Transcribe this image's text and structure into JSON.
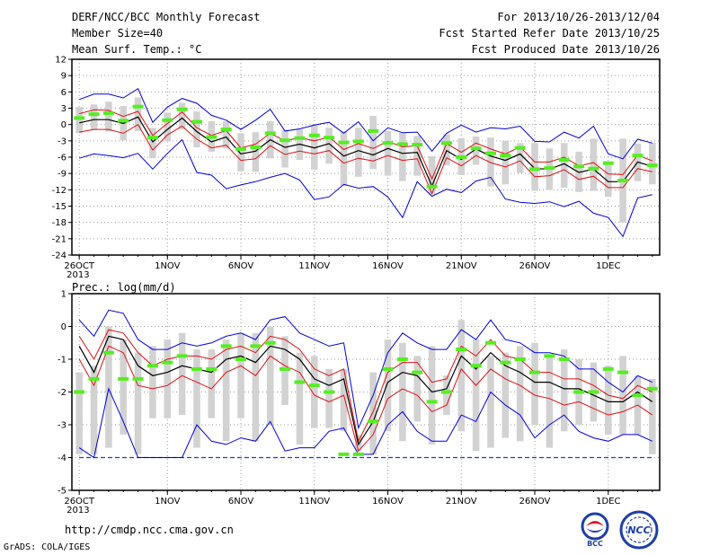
{
  "header": {
    "title": "DERF/NCC/BCC Monthly Forecast",
    "member_size": "Member Size=40",
    "variable": "Mean Surf. Temp.: °C",
    "forecast_period": "For 2013/10/26-2013/12/04",
    "started_date": "Fcst Started Refer Date 2013/10/25",
    "produced_date": "Fcst Produced Date 2013/10/26"
  },
  "footer": {
    "url": "http://cmdp.ncc.cma.gov.cn",
    "grads": "GrADS: COLA/IGES",
    "logo_bcc": "BCC",
    "logo_ncc": "NCC"
  },
  "colors": {
    "frame": "#000000",
    "grid": "#9a9a9a",
    "box": "#d2d2d2",
    "median": "#55ee22",
    "mean": "#000000",
    "spread": "#e01010",
    "extreme": "#0000dd",
    "floor": "#1c3fc8",
    "logo_blue": "#1f3fa7",
    "logo_red": "#d8202a"
  },
  "chart_data": [
    {
      "type": "line",
      "title": "Mean Surf. Temp.: °C",
      "xlabel": "",
      "ylabel": "",
      "x_tick_labels": [
        "26OCT",
        "1NOV",
        "6NOV",
        "11NOV",
        "16NOV",
        "21NOV",
        "26NOV",
        "1DEC"
      ],
      "x_tick_sublabel": "2013",
      "x_tick_days": [
        1,
        7,
        12,
        17,
        22,
        27,
        32,
        37
      ],
      "xlim": [
        1,
        40
      ],
      "ylim": [
        -24,
        12
      ],
      "y_ticks": [
        12,
        9,
        6,
        3,
        0,
        -3,
        -6,
        -9,
        -12,
        -15,
        -18,
        -21,
        -24
      ],
      "grid": true,
      "series": [
        {
          "role": "max",
          "values": [
            4.6,
            5.6,
            5.6,
            4.9,
            6.6,
            0.4,
            3.2,
            4.8,
            3.9,
            1.7,
            0.8,
            -0.9,
            0.8,
            2.8,
            -1.2,
            -0.8,
            -0.1,
            0.4,
            -1.6,
            0.5,
            -3.0,
            -0.6,
            -1.5,
            -1.4,
            -4.9,
            -1.6,
            -0.1,
            -1.4,
            -0.6,
            -0.8,
            -0.3,
            -3.1,
            -3.2,
            -1.4,
            -2.5,
            -0.3,
            -5.4,
            -6.3,
            -2.7,
            -3.4
          ]
        },
        {
          "role": "ens_upper",
          "values": [
            2.0,
            2.7,
            2.6,
            1.5,
            2.4,
            -2.0,
            0.2,
            2.3,
            -0.6,
            -2.0,
            -1.1,
            -4.3,
            -3.6,
            -1.6,
            -3.0,
            -2.4,
            -3.0,
            -2.3,
            -4.6,
            -3.5,
            -4.4,
            -3.1,
            -4.1,
            -3.9,
            -10.0,
            -3.5,
            -5.1,
            -3.4,
            -4.5,
            -5.4,
            -4.1,
            -6.9,
            -6.9,
            -6.0,
            -7.6,
            -7.0,
            -9.1,
            -9.2,
            -5.6,
            -6.7
          ]
        },
        {
          "role": "mean",
          "values": [
            0.3,
            0.9,
            0.9,
            0.2,
            1.4,
            -3.2,
            -0.9,
            1.2,
            -1.3,
            -3.2,
            -2.3,
            -5.4,
            -4.9,
            -2.8,
            -4.2,
            -3.6,
            -4.3,
            -3.5,
            -5.8,
            -4.8,
            -5.6,
            -4.4,
            -5.3,
            -5.1,
            -11.3,
            -4.8,
            -6.4,
            -4.5,
            -5.8,
            -6.6,
            -5.4,
            -8.1,
            -8.2,
            -7.2,
            -8.8,
            -8.2,
            -10.5,
            -10.5,
            -6.9,
            -7.7
          ]
        },
        {
          "role": "ens_lower",
          "values": [
            -1.4,
            -0.9,
            -0.9,
            -1.6,
            0.0,
            -4.7,
            -1.9,
            -0.3,
            -2.7,
            -4.3,
            -3.8,
            -6.6,
            -6.3,
            -3.9,
            -5.5,
            -4.9,
            -5.4,
            -4.8,
            -7.1,
            -6.2,
            -6.7,
            -5.7,
            -6.6,
            -6.3,
            -12.7,
            -6.1,
            -7.6,
            -5.7,
            -7.0,
            -7.8,
            -6.7,
            -9.6,
            -9.4,
            -8.3,
            -10.1,
            -9.5,
            -11.6,
            -11.6,
            -8.1,
            -8.7
          ]
        },
        {
          "role": "min",
          "values": [
            -6.2,
            -5.4,
            -5.7,
            -6.1,
            -5.3,
            -8.2,
            -5.3,
            -2.8,
            -8.8,
            -9.3,
            -11.8,
            -11.1,
            -10.5,
            -9.7,
            -9.0,
            -10.2,
            -13.8,
            -13.3,
            -11.0,
            -11.7,
            -11.4,
            -13.3,
            -17.1,
            -10.5,
            -13.2,
            -11.9,
            -12.5,
            -10.4,
            -9.7,
            -13.7,
            -14.3,
            -14.5,
            -14.2,
            -15.1,
            -14.1,
            -16.3,
            -17.1,
            -20.6,
            -13.5,
            -12.9
          ]
        },
        {
          "role": "median",
          "values": [
            1.2,
            1.9,
            2.1,
            0.7,
            3.3,
            -2.4,
            0.8,
            2.8,
            0.5,
            -2.3,
            -0.9,
            -4.5,
            -4.2,
            -1.6,
            -2.9,
            -2.5,
            -2.0,
            -2.4,
            -3.3,
            -3.1,
            -1.2,
            -3.4,
            -3.6,
            -3.7,
            -11.4,
            -3.4,
            -6.0,
            -4.4,
            -5.3,
            -5.7,
            -4.3,
            -8.2,
            -8.0,
            -6.5,
            -7.7,
            -8.1,
            -7.1,
            -10.3,
            -5.7,
            -7.5
          ]
        },
        {
          "role": "box_top",
          "values": [
            3.2,
            3.7,
            4.2,
            3.4,
            5.0,
            -0.6,
            2.2,
            4.0,
            2.4,
            0.6,
            0.6,
            -1.6,
            -1.4,
            0.6,
            -1.0,
            -0.9,
            0.0,
            -0.6,
            -1.2,
            -0.6,
            1.6,
            -1.2,
            -1.5,
            -2.1,
            -5.8,
            -1.8,
            -2.5,
            -2.2,
            -2.4,
            -3.0,
            -3.4,
            -3.4,
            -4.4,
            -3.4,
            -5.0,
            -2.6,
            -7.0,
            -2.6,
            -3.5,
            -3.3
          ]
        },
        {
          "role": "box_bottom",
          "values": [
            -1.6,
            -1.0,
            -1.3,
            -2.9,
            -1.2,
            -6.2,
            -3.1,
            -0.9,
            -4.2,
            -5.0,
            -4.4,
            -8.6,
            -8.7,
            -6.2,
            -7.9,
            -6.5,
            -8.3,
            -7.2,
            -11.3,
            -9.6,
            -8.2,
            -9.4,
            -10.4,
            -9.4,
            -12.9,
            -7.5,
            -9.3,
            -7.4,
            -11.4,
            -11.0,
            -8.9,
            -12.2,
            -12.0,
            -11.6,
            -12.4,
            -12.2,
            -13.3,
            -18.0,
            -10.4,
            -11.0
          ]
        }
      ]
    },
    {
      "type": "line",
      "title": "Prec.: log(mm/d)",
      "xlabel": "",
      "ylabel": "",
      "x_tick_labels": [
        "26OCT",
        "1NOV",
        "6NOV",
        "11NOV",
        "16NOV",
        "21NOV",
        "26NOV",
        "1DEC"
      ],
      "x_tick_sublabel": "2013",
      "x_tick_days": [
        1,
        7,
        12,
        17,
        22,
        27,
        32,
        37
      ],
      "xlim": [
        1,
        40
      ],
      "ylim": [
        -5,
        1
      ],
      "y_ticks": [
        1,
        0,
        -1,
        -2,
        -3,
        -4,
        -5
      ],
      "grid": true,
      "floor_value": -4,
      "series": [
        {
          "role": "max",
          "values": [
            0.2,
            -0.3,
            0.5,
            0.4,
            -0.4,
            -0.7,
            -0.7,
            -0.5,
            -0.6,
            -0.5,
            -0.3,
            -0.2,
            -0.4,
            0.2,
            0.3,
            -0.2,
            -0.4,
            -0.6,
            -0.5,
            -3.1,
            -2.1,
            -0.8,
            -0.2,
            -0.5,
            -0.7,
            -0.7,
            -0.1,
            -0.4,
            0.2,
            -0.4,
            -0.5,
            -0.8,
            -0.8,
            -0.9,
            -1.3,
            -1.3,
            -1.7,
            -2.0,
            -1.5,
            -1.7
          ]
        },
        {
          "role": "ens_upper",
          "values": [
            -0.3,
            -1.0,
            -0.1,
            -0.2,
            -0.8,
            -1.2,
            -1.0,
            -0.9,
            -0.9,
            -1.0,
            -0.7,
            -0.6,
            -0.8,
            -0.3,
            -0.4,
            -0.7,
            -1.3,
            -1.5,
            -1.3,
            -3.5,
            -2.6,
            -1.4,
            -1.1,
            -1.1,
            -1.7,
            -1.6,
            -0.6,
            -0.9,
            -0.4,
            -0.9,
            -1.0,
            -1.4,
            -1.4,
            -1.6,
            -1.6,
            -1.8,
            -2.1,
            -2.2,
            -1.8,
            -2.0
          ]
        },
        {
          "role": "mean",
          "values": [
            -0.6,
            -1.4,
            -0.3,
            -0.4,
            -1.2,
            -1.5,
            -1.4,
            -1.2,
            -1.3,
            -1.4,
            -1.0,
            -0.9,
            -1.1,
            -0.6,
            -0.7,
            -1.0,
            -1.6,
            -1.8,
            -1.6,
            -3.6,
            -2.9,
            -1.7,
            -1.4,
            -1.5,
            -2.0,
            -1.9,
            -0.9,
            -1.3,
            -0.8,
            -1.2,
            -1.4,
            -1.7,
            -1.7,
            -1.9,
            -1.9,
            -2.1,
            -2.3,
            -2.3,
            -2.0,
            -2.3
          ]
        },
        {
          "role": "ens_lower",
          "values": [
            -1.0,
            -1.8,
            -0.6,
            -0.8,
            -1.8,
            -1.9,
            -1.8,
            -1.5,
            -1.7,
            -1.9,
            -1.4,
            -1.2,
            -1.5,
            -0.9,
            -1.2,
            -1.4,
            -2.1,
            -2.3,
            -2.1,
            -3.8,
            -3.3,
            -2.2,
            -1.9,
            -2.1,
            -2.6,
            -2.4,
            -1.3,
            -1.8,
            -1.3,
            -1.6,
            -1.8,
            -2.1,
            -2.2,
            -2.4,
            -2.3,
            -2.5,
            -2.7,
            -2.6,
            -2.4,
            -2.7
          ]
        },
        {
          "role": "min",
          "values": [
            -3.7,
            -4.0,
            -1.9,
            -2.9,
            -4.0,
            -4.0,
            -4.0,
            -4.0,
            -3.0,
            -3.5,
            -3.6,
            -3.4,
            -3.5,
            -2.9,
            -3.8,
            -3.7,
            -3.7,
            -3.2,
            -3.1,
            -3.9,
            -3.9,
            -3.0,
            -2.6,
            -3.2,
            -3.5,
            -3.5,
            -2.7,
            -2.9,
            -2.0,
            -2.4,
            -2.7,
            -3.4,
            -3.0,
            -2.7,
            -3.2,
            -3.4,
            -3.5,
            -3.3,
            -3.3,
            -3.5
          ]
        },
        {
          "role": "median",
          "values": [
            -2.0,
            -1.6,
            -0.8,
            -1.6,
            -1.6,
            -1.2,
            -1.1,
            -0.9,
            -1.3,
            -1.3,
            -0.6,
            -1.0,
            -0.6,
            -0.5,
            -1.3,
            -1.7,
            -1.8,
            -2.0,
            -3.9,
            -3.9,
            -2.9,
            -1.3,
            -1.0,
            -1.4,
            -2.3,
            -2.0,
            -0.7,
            -1.2,
            -0.5,
            -1.1,
            -1.0,
            -1.4,
            -0.9,
            -1.0,
            -2.0,
            -2.0,
            -1.3,
            -1.4,
            -2.1,
            -1.9
          ]
        },
        {
          "role": "box_top",
          "values": [
            -1.4,
            -1.2,
            0.0,
            -0.4,
            -0.8,
            -0.6,
            -0.4,
            -0.2,
            -0.7,
            -0.7,
            -0.4,
            -0.2,
            -0.2,
            0.0,
            -0.3,
            -0.8,
            -0.9,
            -1.3,
            -1.3,
            -3.3,
            -1.4,
            -0.4,
            -0.5,
            -0.9,
            -0.6,
            -1.5,
            0.2,
            -0.4,
            -0.9,
            -0.8,
            -0.6,
            -0.5,
            -0.9,
            -0.7,
            -1.0,
            -1.1,
            -1.2,
            -0.9,
            -1.5,
            -1.6
          ]
        },
        {
          "role": "box_bottom",
          "values": [
            -3.9,
            -3.9,
            -3.7,
            -3.3,
            -3.9,
            -2.8,
            -2.8,
            -2.7,
            -3.7,
            -2.8,
            -3.5,
            -2.8,
            -3.5,
            -3.0,
            -2.4,
            -3.6,
            -3.1,
            -3.1,
            -3.2,
            -3.8,
            -3.9,
            -3.2,
            -3.5,
            -2.9,
            -3.6,
            -2.7,
            -3.2,
            -3.8,
            -3.7,
            -3.4,
            -3.5,
            -3.0,
            -3.7,
            -3.2,
            -3.0,
            -2.9,
            -3.3,
            -3.3,
            -3.3,
            -3.9
          ]
        }
      ]
    }
  ]
}
